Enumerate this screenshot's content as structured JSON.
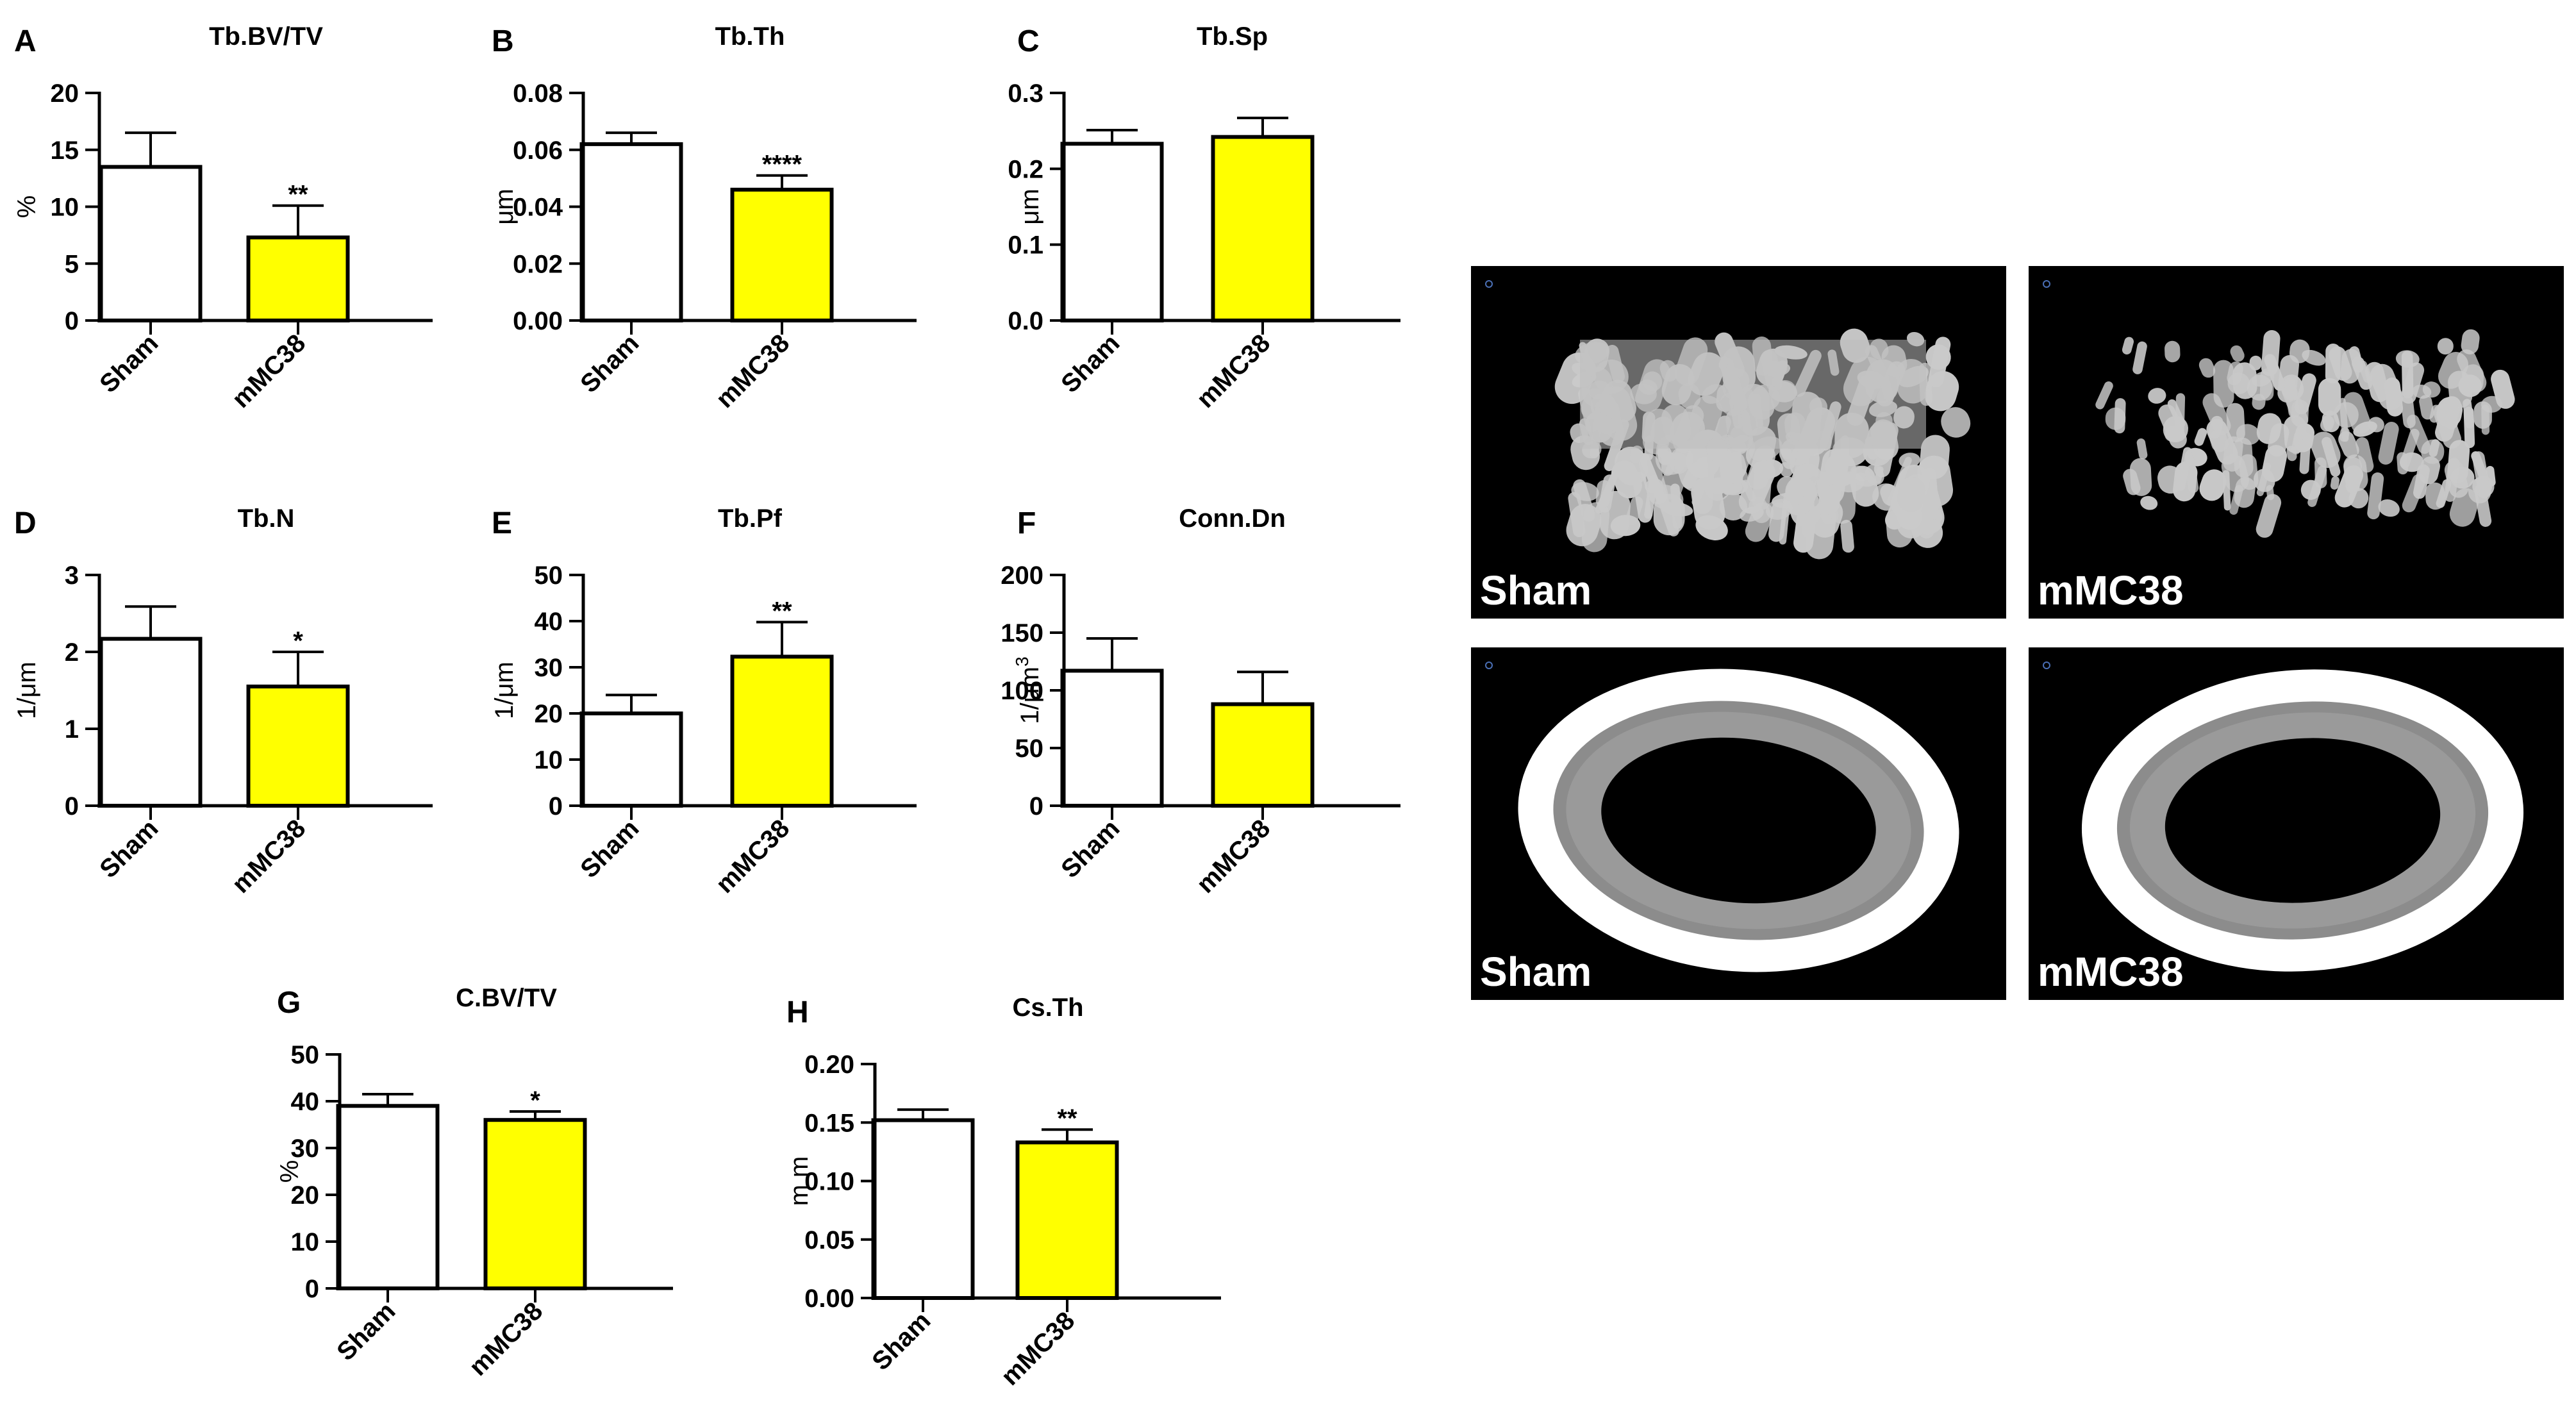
{
  "colors": {
    "sham_fill": "#ffffff",
    "mmc38_fill": "#ffff00",
    "axis": "#000000",
    "image_background": "#000000",
    "bone": "#c9c9c9"
  },
  "chart_data": [
    {
      "letter": "A",
      "title": "Tb.BV/TV",
      "type": "bar",
      "categories": [
        "Sham",
        "mMC38"
      ],
      "values": [
        13.5,
        7.3
      ],
      "errors": [
        3.0,
        2.8
      ],
      "significance": [
        "",
        "**"
      ],
      "ylabel": "%",
      "ylim": [
        0,
        20
      ],
      "ticks": [
        0,
        5,
        10,
        15,
        20
      ],
      "tick_labels": [
        "0",
        "5",
        "10",
        "15",
        "20"
      ]
    },
    {
      "letter": "B",
      "title": "Tb.Th",
      "type": "bar",
      "categories": [
        "Sham",
        "mMC38"
      ],
      "values": [
        0.062,
        0.046
      ],
      "errors": [
        0.004,
        0.005
      ],
      "significance": [
        "",
        "****"
      ],
      "ylabel": "μm",
      "ylim": [
        0,
        0.08
      ],
      "ticks": [
        0,
        0.02,
        0.04,
        0.06,
        0.08
      ],
      "tick_labels": [
        "0.00",
        "0.02",
        "0.04",
        "0.06",
        "0.08"
      ]
    },
    {
      "letter": "C",
      "title": "Tb.Sp",
      "type": "bar",
      "categories": [
        "Sham",
        "mMC38"
      ],
      "values": [
        0.233,
        0.242
      ],
      "errors": [
        0.018,
        0.025
      ],
      "significance": [
        "",
        ""
      ],
      "ylabel": "μm",
      "ylim": [
        0,
        0.3
      ],
      "ticks": [
        0,
        0.1,
        0.2,
        0.3
      ],
      "tick_labels": [
        "0.0",
        "0.1",
        "0.2",
        "0.3"
      ]
    },
    {
      "letter": "D",
      "title": "Tb.N",
      "type": "bar",
      "categories": [
        "Sham",
        "mMC38"
      ],
      "values": [
        2.17,
        1.55
      ],
      "errors": [
        0.42,
        0.45
      ],
      "significance": [
        "",
        "*"
      ],
      "ylabel": "1/μm",
      "ylim": [
        0,
        3
      ],
      "ticks": [
        0,
        1,
        2,
        3
      ],
      "tick_labels": [
        "0",
        "1",
        "2",
        "3"
      ]
    },
    {
      "letter": "E",
      "title": "Tb.Pf",
      "type": "bar",
      "categories": [
        "Sham",
        "mMC38"
      ],
      "values": [
        20.0,
        32.3
      ],
      "errors": [
        4.0,
        7.5
      ],
      "significance": [
        "",
        "**"
      ],
      "ylabel": "1/μm",
      "ylim": [
        0,
        50
      ],
      "ticks": [
        0,
        10,
        20,
        30,
        40,
        50
      ],
      "tick_labels": [
        "0",
        "10",
        "20",
        "30",
        "40",
        "50"
      ]
    },
    {
      "letter": "F",
      "title": "Conn.Dn",
      "type": "bar",
      "categories": [
        "Sham",
        "mMC38"
      ],
      "values": [
        117,
        88
      ],
      "errors": [
        28,
        28
      ],
      "significance": [
        "",
        ""
      ],
      "ylabel": "1/μm",
      "ylabel_sup": "3",
      "ylim": [
        0,
        200
      ],
      "ticks": [
        0,
        50,
        100,
        150,
        200
      ],
      "tick_labels": [
        "0",
        "50",
        "100",
        "150",
        "200"
      ]
    },
    {
      "letter": "G",
      "title": "C.BV/TV",
      "type": "bar",
      "categories": [
        "Sham",
        "mMC38"
      ],
      "values": [
        39.0,
        36.0
      ],
      "errors": [
        2.5,
        1.8
      ],
      "significance": [
        "",
        "*"
      ],
      "ylabel": "%",
      "ylim": [
        0,
        50
      ],
      "ticks": [
        0,
        10,
        20,
        30,
        40,
        50
      ],
      "tick_labels": [
        "0",
        "10",
        "20",
        "30",
        "40",
        "50"
      ]
    },
    {
      "letter": "H",
      "title": "Cs.Th",
      "type": "bar",
      "categories": [
        "Sham",
        "mMC38"
      ],
      "values": [
        0.152,
        0.133
      ],
      "errors": [
        0.009,
        0.011
      ],
      "significance": [
        "",
        "**"
      ],
      "ylabel": "m m",
      "ylim": [
        0,
        0.2
      ],
      "ticks": [
        0,
        0.05,
        0.1,
        0.15,
        0.2
      ],
      "tick_labels": [
        "0.00",
        "0.05",
        "0.10",
        "0.15",
        "0.20"
      ]
    }
  ],
  "images": [
    {
      "label": "Sham",
      "kind": "trabecular"
    },
    {
      "label": "mMC38",
      "kind": "trabecular"
    },
    {
      "label": "Sham",
      "kind": "cortical"
    },
    {
      "label": "mMC38",
      "kind": "cortical"
    }
  ]
}
